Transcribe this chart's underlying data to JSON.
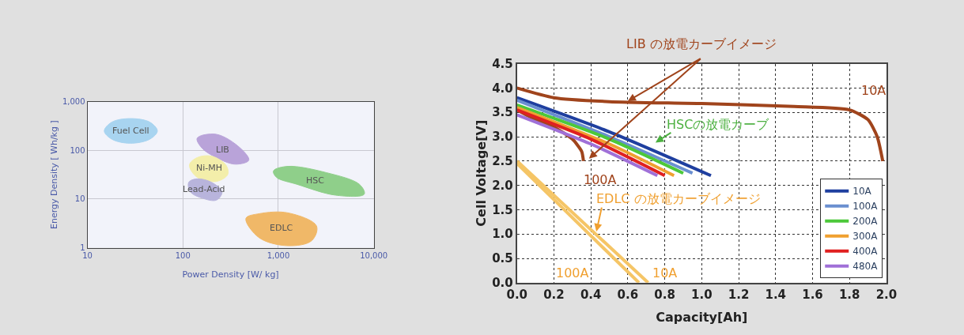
{
  "chart_data": [
    {
      "type": "area",
      "xlabel": "Power Density [W/ kg]",
      "ylabel": "Energy Density [ Wh/kg ]",
      "log": "xy",
      "grid": true,
      "legend": false,
      "xlim": [
        10,
        10000
      ],
      "ylim": [
        1,
        1000
      ],
      "xticks": [
        10,
        100,
        {
          "value": 1000,
          "label": "1,000"
        },
        {
          "value": 10000,
          "label": "10,000"
        }
      ],
      "yticks": [
        1,
        10,
        100,
        {
          "value": 1000,
          "label": "1,000"
        }
      ],
      "series": [
        {
          "name": "Fuel Cell",
          "color": "#a8d4f0",
          "x": [
            54,
            45,
            28,
            18,
            15,
            18,
            28,
            45
          ],
          "values": [
            250,
            380,
            450,
            380,
            250,
            170,
            140,
            170
          ]
        },
        {
          "name": "LIB",
          "color": "#b9a3d9",
          "x": [
            141,
            224,
            398,
            490,
            355,
            224,
            158
          ],
          "values": [
            178,
            214,
            112,
            63,
            52,
            71,
            112
          ]
        },
        {
          "name": "Ni-MH",
          "color": "#f3eeaa",
          "x": [
            117,
            141,
            200,
            282,
            295,
            224,
            141
          ],
          "values": [
            50,
            71,
            76,
            50,
            32,
            23,
            28
          ]
        },
        {
          "name": "Lead-Acid",
          "color": "#b8b4dc",
          "x": [
            115,
            141,
            200,
            257,
            224,
            158,
            120
          ],
          "values": [
            22,
            26,
            22,
            14,
            9.5,
            10.5,
            14
          ]
        },
        {
          "name": "HSC",
          "color": "#8fcf8a",
          "x": [
            890,
            1260,
            3160,
            7080,
            7940,
            3980,
            1580,
            955
          ],
          "values": [
            38,
            47,
            35,
            20,
            12.6,
            12,
            20,
            28
          ]
        },
        {
          "name": "EDLC",
          "color": "#f0b868",
          "x": [
            457,
            631,
            1260,
            2510,
            2240,
            1260,
            631
          ],
          "values": [
            4,
            5,
            5.2,
            2.8,
            1.4,
            1.1,
            1.6
          ]
        }
      ]
    },
    {
      "type": "line",
      "xlabel": "Capacity[Ah]",
      "ylabel": "Cell Voltage[V]",
      "grid": true,
      "legend": "bottom right",
      "xlim": [
        0,
        2
      ],
      "ylim": [
        0,
        4.5
      ],
      "xticks": [
        {
          "value": 0,
          "label": "0.0"
        },
        0.2,
        0.4,
        0.6,
        0.8,
        {
          "value": 1,
          "label": "1.0"
        },
        1.2,
        1.4,
        1.6,
        1.8,
        {
          "value": 2,
          "label": "2.0"
        }
      ],
      "yticks": [
        {
          "value": 0,
          "label": "0.0"
        },
        0.5,
        {
          "value": 1,
          "label": "1.0"
        },
        1.5,
        {
          "value": 2,
          "label": "2.0"
        },
        2.5,
        {
          "value": 3,
          "label": "3.0"
        },
        3.5,
        {
          "value": 4,
          "label": "4.0"
        },
        4.5
      ],
      "series": [
        {
          "color": "#a0441c",
          "x": [
            0,
            0.2,
            0.5,
            1.0,
            1.5,
            1.8,
            1.9,
            1.95,
            1.98
          ],
          "values": [
            4.0,
            3.8,
            3.72,
            3.68,
            3.62,
            3.55,
            3.35,
            3.0,
            2.5
          ]
        },
        {
          "color": "#a0441c",
          "x": [
            0,
            0.1,
            0.2,
            0.3,
            0.35,
            0.36
          ],
          "values": [
            3.55,
            3.35,
            3.2,
            2.95,
            2.7,
            2.5
          ]
        },
        {
          "color": "#f5c566",
          "x": [
            0,
            0.66
          ],
          "values": [
            2.45,
            0
          ]
        },
        {
          "color": "#f5c566",
          "x": [
            0,
            0.71
          ],
          "values": [
            2.5,
            0
          ]
        },
        {
          "name": "10A",
          "color": "#1f3f9f",
          "x": [
            0,
            0.5,
            1.05
          ],
          "values": [
            3.8,
            3.1,
            2.2
          ]
        },
        {
          "name": "100A",
          "color": "#6a8fd0",
          "x": [
            0,
            0.5,
            0.95
          ],
          "values": [
            3.75,
            3.0,
            2.25
          ]
        },
        {
          "name": "200A",
          "color": "#4cc83a",
          "x": [
            0,
            0.5,
            0.9
          ],
          "values": [
            3.65,
            2.95,
            2.25
          ]
        },
        {
          "name": "300A",
          "color": "#f0a030",
          "x": [
            0,
            0.5,
            0.85
          ],
          "values": [
            3.6,
            2.85,
            2.2
          ]
        },
        {
          "name": "400A",
          "color": "#e02020",
          "x": [
            0,
            0.4,
            0.8
          ],
          "values": [
            3.55,
            2.95,
            2.2
          ]
        },
        {
          "name": "480A",
          "color": "#a070d8",
          "x": [
            0,
            0.4,
            0.76
          ],
          "values": [
            3.45,
            2.85,
            2.2
          ]
        }
      ],
      "annotations": [
        {
          "text": "LIB の放電カーブイメージ",
          "x": 0.6,
          "y": 3.73
        },
        "HSCの放電カーブ",
        {
          "text": "EDLC の放電カーブイメージ",
          "x": 0.43,
          "y": 1.05
        },
        "10A",
        "100A",
        "100A",
        "10A"
      ]
    }
  ]
}
